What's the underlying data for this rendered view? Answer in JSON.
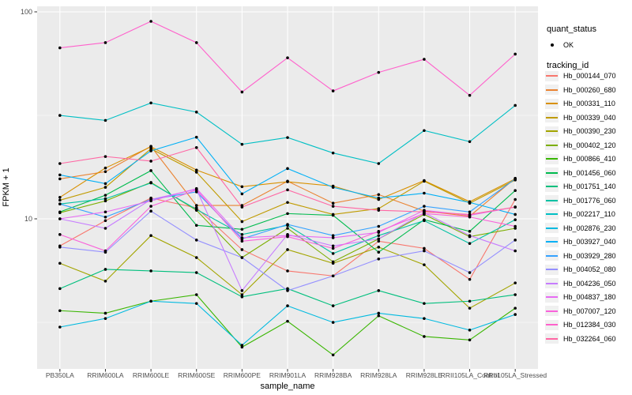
{
  "figure": {
    "y_axis": {
      "label": "FPKM + 1",
      "scale": "log10",
      "ticks": [
        "100",
        "10"
      ]
    },
    "x_axis": {
      "label": "sample_name"
    },
    "legend": {
      "quant_title": "quant_status",
      "quant_items": [
        {
          "label": "OK",
          "marker": "point",
          "color": "#000000"
        }
      ],
      "tracking_title": "tracking_id"
    },
    "colors": {
      "panel_background": "#EBEBEB",
      "grid_major": "#FFFFFF",
      "grid_minor": "#FFFFFF",
      "axis_text": "#4D4D4D",
      "tick_mark": "#333333",
      "point": "#000000",
      "legend_key_background": "#F0F0F0"
    }
  },
  "chart_data": {
    "type": "line",
    "title": "",
    "xlabel": "sample_name",
    "ylabel": "FPKM + 1",
    "y_scale": "log10",
    "ylim": [
      1.9,
      106
    ],
    "y_major_gridlines": [
      10,
      100
    ],
    "y_minor_gridlines": [
      3.162,
      31.623
    ],
    "grid": true,
    "legend_position": "right",
    "point_marker": {
      "legend_title": "quant_status",
      "label": "OK",
      "color": "#000000"
    },
    "categories": [
      "PB350LA",
      "RRIM600LA",
      "RRIM600LE",
      "RRIM600SE",
      "RRIM600PE",
      "RRIM901LA",
      "RRIM928BA",
      "RRIM928LA",
      "RRIM928LE",
      "RRII105LA_Control",
      "RRII105LA_Stressed"
    ],
    "series": [
      {
        "name": "Hb_000144_070",
        "color": "#F8766D",
        "values": [
          7.4,
          9.8,
          12.6,
          11.3,
          7.1,
          5.6,
          5.3,
          7.8,
          7.2,
          5.1,
          12.4
        ]
      },
      {
        "name": "Hb_000260_680",
        "color": "#EA8331",
        "values": [
          15.6,
          16.9,
          22.4,
          11.6,
          11.6,
          15.2,
          11.9,
          13.1,
          10.9,
          10.3,
          15.7
        ]
      },
      {
        "name": "Hb_000331_110",
        "color": "#D89000",
        "values": [
          12.7,
          17.6,
          22.3,
          17.2,
          14.3,
          15.1,
          14.4,
          12.4,
          15.3,
          12.1,
          15.6
        ]
      },
      {
        "name": "Hb_000339_040",
        "color": "#C09B00",
        "values": [
          12.3,
          14.2,
          21.8,
          16.8,
          9.7,
          12.0,
          10.5,
          11.2,
          15.2,
          11.9,
          15.4
        ]
      },
      {
        "name": "Hb_000390_230",
        "color": "#A3A500",
        "values": [
          6.1,
          5.0,
          8.3,
          6.5,
          4.3,
          7.1,
          6.1,
          7.3,
          6.0,
          3.7,
          4.9
        ]
      },
      {
        "name": "Hb_000402_120",
        "color": "#7CAE00",
        "values": [
          10.7,
          12.2,
          15.0,
          11.0,
          6.5,
          9.0,
          6.2,
          8.0,
          10.5,
          8.2,
          9.0
        ]
      },
      {
        "name": "Hb_000866_410",
        "color": "#39B600",
        "values": [
          3.6,
          3.5,
          4.0,
          4.3,
          2.4,
          3.2,
          2.2,
          3.4,
          2.7,
          2.6,
          3.7
        ]
      },
      {
        "name": "Hb_001456_060",
        "color": "#00BB4E",
        "values": [
          10.8,
          13.0,
          17.1,
          9.3,
          8.9,
          10.6,
          10.4,
          6.9,
          9.9,
          8.7,
          13.7
        ]
      },
      {
        "name": "Hb_001751_140",
        "color": "#00BF7D",
        "values": [
          4.6,
          5.7,
          5.6,
          5.5,
          4.2,
          4.6,
          3.8,
          4.5,
          3.9,
          4.0,
          4.3
        ]
      },
      {
        "name": "Hb_001776_060",
        "color": "#00C1A3",
        "values": [
          11.8,
          12.5,
          14.9,
          11.1,
          8.4,
          9.3,
          6.8,
          8.3,
          9.8,
          7.6,
          9.9
        ]
      },
      {
        "name": "Hb_002217_110",
        "color": "#00BFC4",
        "values": [
          31.6,
          29.9,
          36.3,
          32.8,
          22.9,
          24.7,
          20.8,
          18.5,
          26.7,
          23.6,
          35.3
        ]
      },
      {
        "name": "Hb_002876_230",
        "color": "#00BAE0",
        "values": [
          3.0,
          3.3,
          4.0,
          3.9,
          2.45,
          3.8,
          3.16,
          3.5,
          3.3,
          2.9,
          3.45
        ]
      },
      {
        "name": "Hb_003927_040",
        "color": "#00B0F6",
        "values": [
          16.3,
          14.8,
          21.3,
          24.8,
          13.2,
          17.5,
          14.2,
          12.6,
          13.3,
          12.0,
          10.5
        ]
      },
      {
        "name": "Hb_003929_280",
        "color": "#35A2FF",
        "values": [
          11.8,
          10.2,
          12.4,
          13.5,
          8.0,
          9.4,
          8.3,
          9.2,
          11.5,
          10.8,
          15.6
        ]
      },
      {
        "name": "Hb_004052_080",
        "color": "#9590FF",
        "values": [
          7.3,
          6.9,
          10.9,
          7.9,
          6.5,
          4.5,
          5.3,
          6.4,
          7.0,
          5.5,
          7.9
        ]
      },
      {
        "name": "Hb_004236_050",
        "color": "#C77CFF",
        "values": [
          10.0,
          9.0,
          12.4,
          13.9,
          4.5,
          8.4,
          7.4,
          8.0,
          10.7,
          8.3,
          7.0
        ]
      },
      {
        "name": "Hb_004837_180",
        "color": "#E76BF3",
        "values": [
          10.0,
          10.8,
          12.2,
          14.0,
          8.1,
          8.3,
          8.1,
          8.6,
          11.0,
          10.4,
          11.4
        ]
      },
      {
        "name": "Hb_007007_120",
        "color": "#FA62DB",
        "values": [
          8.4,
          7.0,
          11.5,
          13.8,
          7.8,
          8.2,
          7.2,
          8.7,
          10.6,
          10.2,
          9.2
        ]
      },
      {
        "name": "Hb_012384_030",
        "color": "#FF61CC",
        "values": [
          67,
          71,
          90,
          71,
          41,
          60,
          41.5,
          51,
          59,
          39.5,
          62.5
        ]
      },
      {
        "name": "Hb_032264_060",
        "color": "#FF67A4",
        "values": [
          18.5,
          20.0,
          19.0,
          22.1,
          11.4,
          13.8,
          11.5,
          11.0,
          10.8,
          10.5,
          11.4
        ]
      }
    ]
  }
}
